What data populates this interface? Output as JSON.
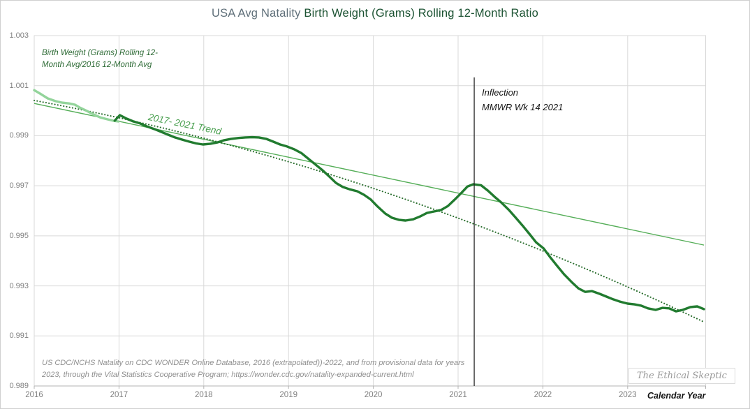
{
  "title": {
    "prefix": "USA Avg Natality ",
    "main": "Birth Weight (Grams) Rolling 12-Month Ratio"
  },
  "annotations": {
    "series_label": "Birth Weight (Grams) Rolling 12-\nMonth Avg/2016 12-Month Avg",
    "trend_label": "2017- 2021 Trend",
    "inflection_label": "Inflection\nMMWR Wk 14 2021",
    "source_note": "US CDC/NCHS Natality on CDC WONDER Online Database, 2016 (extrapolated))-2022, and from provisional data for years\n2023, through the Vital Statistics  Cooperative Program; https://wonder.cdc.gov/natality-expanded-current.html",
    "watermark": "The Ethical Skeptic",
    "x_axis_title": "Calendar Year"
  },
  "colors": {
    "title_prefix": "#60707a",
    "title_main": "#1b5232",
    "series_main": "#217b2f",
    "series_2016": "#93d49b",
    "trend_dotted": "#2a6e2e",
    "trend_solid": "#55ae58",
    "grid": "#d9d9d9",
    "axis_line": "#b3b3b3",
    "inflection_line": "#1a1a1a",
    "tick_text": "#7f7f7f"
  },
  "chart_data": {
    "type": "line",
    "title": "USA Avg Natality Birth Weight (Grams) Rolling 12-Month Ratio",
    "xlabel": "Calendar Year",
    "ylabel": "Birth Weight (Grams) Rolling 12-Month Avg/2016 12-Month Avg",
    "xlim": [
      2016,
      2023.92
    ],
    "ylim": [
      0.989,
      1.003
    ],
    "x_ticks": [
      2016,
      2017,
      2018,
      2019,
      2020,
      2021,
      2022,
      2023
    ],
    "y_ticks": [
      1.003,
      1.001,
      0.999,
      0.997,
      0.995,
      0.993,
      0.991,
      0.989
    ],
    "grid": true,
    "legend_position": "none",
    "inflection_line": {
      "x": 2021.19,
      "y_top": 1.00133,
      "label": "Inflection MMWR Wk 14 2021"
    },
    "trend_dotted": {
      "name": "2017- 2021 Trend (polynomial, projected)",
      "style": "dotted",
      "start": [
        2016.0,
        1.00041
      ],
      "control": [
        2019.96,
        0.99791
      ],
      "end": [
        2023.91,
        0.99154
      ]
    },
    "trend_solid": {
      "name": "2017- 2021 Trend (linear, projected)",
      "style": "solid-thin",
      "start": [
        2016.0,
        1.00029
      ],
      "end": [
        2023.9,
        0.99463
      ]
    },
    "series": [
      {
        "name": "2016 rolling 12-month ratio (extrapolated)",
        "color": "#93d49b",
        "points": [
          [
            2016.0,
            1.00082
          ],
          [
            2016.08,
            1.00066
          ],
          [
            2016.16,
            1.00049
          ],
          [
            2016.25,
            1.00038
          ],
          [
            2016.33,
            1.00032
          ],
          [
            2016.41,
            1.00029
          ],
          [
            2016.48,
            1.00024
          ],
          [
            2016.54,
            1.00012
          ],
          [
            2016.62,
            0.99999
          ],
          [
            2016.7,
            0.99985
          ],
          [
            2016.78,
            0.99973
          ],
          [
            2016.87,
            0.99965
          ],
          [
            2016.93,
            0.9996
          ],
          [
            2016.99,
            0.99957
          ]
        ]
      },
      {
        "name": "Birth weight rolling 12-month avg / 2016 12-month avg",
        "color": "#217b2f",
        "points": [
          [
            2016.95,
            0.9996
          ],
          [
            2017.01,
            0.99982
          ],
          [
            2017.09,
            0.99968
          ],
          [
            2017.17,
            0.99957
          ],
          [
            2017.25,
            0.99949
          ],
          [
            2017.33,
            0.99937
          ],
          [
            2017.42,
            0.99926
          ],
          [
            2017.5,
            0.99915
          ],
          [
            2017.58,
            0.99904
          ],
          [
            2017.66,
            0.99893
          ],
          [
            2017.75,
            0.99884
          ],
          [
            2017.83,
            0.99876
          ],
          [
            2017.91,
            0.99869
          ],
          [
            2017.99,
            0.99865
          ],
          [
            2018.08,
            0.99868
          ],
          [
            2018.16,
            0.99873
          ],
          [
            2018.24,
            0.99882
          ],
          [
            2018.32,
            0.99887
          ],
          [
            2018.41,
            0.99891
          ],
          [
            2018.49,
            0.99893
          ],
          [
            2018.57,
            0.99894
          ],
          [
            2018.65,
            0.99893
          ],
          [
            2018.74,
            0.99887
          ],
          [
            2018.82,
            0.99876
          ],
          [
            2018.9,
            0.99865
          ],
          [
            2018.98,
            0.99857
          ],
          [
            2019.07,
            0.99845
          ],
          [
            2019.15,
            0.99831
          ],
          [
            2019.23,
            0.99809
          ],
          [
            2019.31,
            0.99787
          ],
          [
            2019.4,
            0.99762
          ],
          [
            2019.48,
            0.99737
          ],
          [
            2019.56,
            0.99711
          ],
          [
            2019.64,
            0.99695
          ],
          [
            2019.72,
            0.99686
          ],
          [
            2019.81,
            0.99678
          ],
          [
            2019.89,
            0.99664
          ],
          [
            2019.97,
            0.99645
          ],
          [
            2020.05,
            0.99617
          ],
          [
            2020.14,
            0.99589
          ],
          [
            2020.22,
            0.99572
          ],
          [
            2020.3,
            0.99564
          ],
          [
            2020.38,
            0.99561
          ],
          [
            2020.47,
            0.99566
          ],
          [
            2020.55,
            0.99577
          ],
          [
            2020.63,
            0.99591
          ],
          [
            2020.71,
            0.99597
          ],
          [
            2020.8,
            0.99603
          ],
          [
            2020.88,
            0.99619
          ],
          [
            2020.96,
            0.99645
          ],
          [
            2021.04,
            0.99672
          ],
          [
            2021.11,
            0.99697
          ],
          [
            2021.18,
            0.99706
          ],
          [
            2021.27,
            0.99702
          ],
          [
            2021.35,
            0.99681
          ],
          [
            2021.43,
            0.99656
          ],
          [
            2021.51,
            0.99633
          ],
          [
            2021.6,
            0.99603
          ],
          [
            2021.68,
            0.99572
          ],
          [
            2021.76,
            0.99541
          ],
          [
            2021.84,
            0.99508
          ],
          [
            2021.92,
            0.99474
          ],
          [
            2022.01,
            0.99449
          ],
          [
            2022.09,
            0.99413
          ],
          [
            2022.17,
            0.99379
          ],
          [
            2022.25,
            0.99346
          ],
          [
            2022.34,
            0.99315
          ],
          [
            2022.42,
            0.9929
          ],
          [
            2022.5,
            0.99276
          ],
          [
            2022.58,
            0.99279
          ],
          [
            2022.67,
            0.99268
          ],
          [
            2022.75,
            0.99257
          ],
          [
            2022.83,
            0.99246
          ],
          [
            2022.91,
            0.99237
          ],
          [
            2023.0,
            0.99229
          ],
          [
            2023.08,
            0.99226
          ],
          [
            2023.16,
            0.99221
          ],
          [
            2023.24,
            0.9921
          ],
          [
            2023.33,
            0.99204
          ],
          [
            2023.41,
            0.99212
          ],
          [
            2023.49,
            0.9921
          ],
          [
            2023.57,
            0.99198
          ],
          [
            2023.65,
            0.99204
          ],
          [
            2023.74,
            0.99215
          ],
          [
            2023.82,
            0.99218
          ],
          [
            2023.9,
            0.99207
          ]
        ]
      }
    ]
  }
}
